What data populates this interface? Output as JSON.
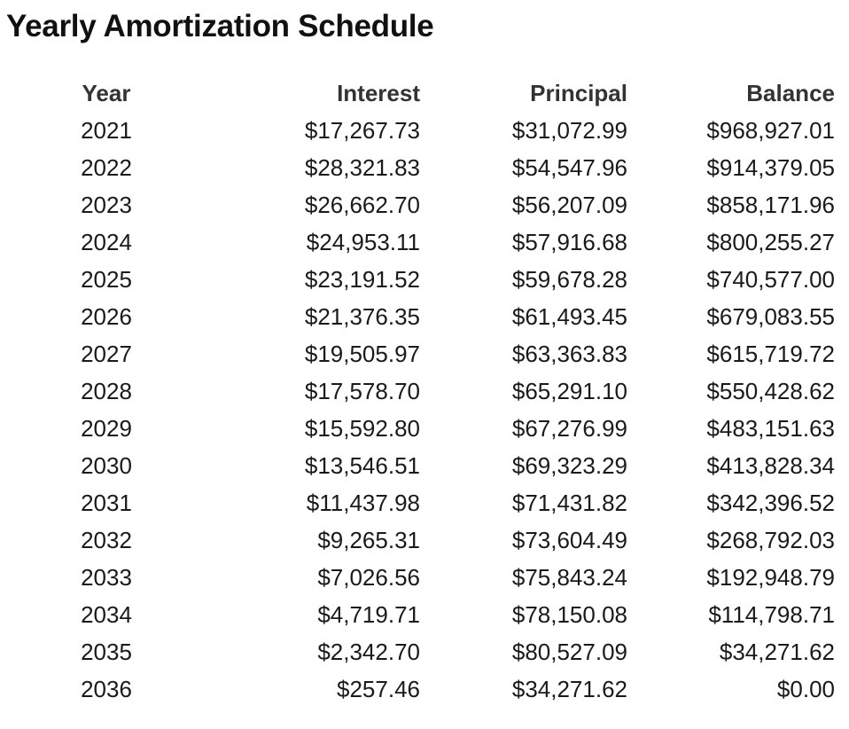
{
  "title": "Yearly Amortization Schedule",
  "table": {
    "headers": {
      "year": "Year",
      "interest": "Interest",
      "principal": "Principal",
      "balance": "Balance"
    },
    "rows": [
      {
        "year": "2021",
        "interest": "$17,267.73",
        "principal": "$31,072.99",
        "balance": "$968,927.01"
      },
      {
        "year": "2022",
        "interest": "$28,321.83",
        "principal": "$54,547.96",
        "balance": "$914,379.05"
      },
      {
        "year": "2023",
        "interest": "$26,662.70",
        "principal": "$56,207.09",
        "balance": "$858,171.96"
      },
      {
        "year": "2024",
        "interest": "$24,953.11",
        "principal": "$57,916.68",
        "balance": "$800,255.27"
      },
      {
        "year": "2025",
        "interest": "$23,191.52",
        "principal": "$59,678.28",
        "balance": "$740,577.00"
      },
      {
        "year": "2026",
        "interest": "$21,376.35",
        "principal": "$61,493.45",
        "balance": "$679,083.55"
      },
      {
        "year": "2027",
        "interest": "$19,505.97",
        "principal": "$63,363.83",
        "balance": "$615,719.72"
      },
      {
        "year": "2028",
        "interest": "$17,578.70",
        "principal": "$65,291.10",
        "balance": "$550,428.62"
      },
      {
        "year": "2029",
        "interest": "$15,592.80",
        "principal": "$67,276.99",
        "balance": "$483,151.63"
      },
      {
        "year": "2030",
        "interest": "$13,546.51",
        "principal": "$69,323.29",
        "balance": "$413,828.34"
      },
      {
        "year": "2031",
        "interest": "$11,437.98",
        "principal": "$71,431.82",
        "balance": "$342,396.52"
      },
      {
        "year": "2032",
        "interest": "$9,265.31",
        "principal": "$73,604.49",
        "balance": "$268,792.03"
      },
      {
        "year": "2033",
        "interest": "$7,026.56",
        "principal": "$75,843.24",
        "balance": "$192,948.79"
      },
      {
        "year": "2034",
        "interest": "$4,719.71",
        "principal": "$78,150.08",
        "balance": "$114,798.71"
      },
      {
        "year": "2035",
        "interest": "$2,342.70",
        "principal": "$80,527.09",
        "balance": "$34,271.62"
      },
      {
        "year": "2036",
        "interest": "$257.46",
        "principal": "$34,271.62",
        "balance": "$0.00"
      }
    ]
  }
}
